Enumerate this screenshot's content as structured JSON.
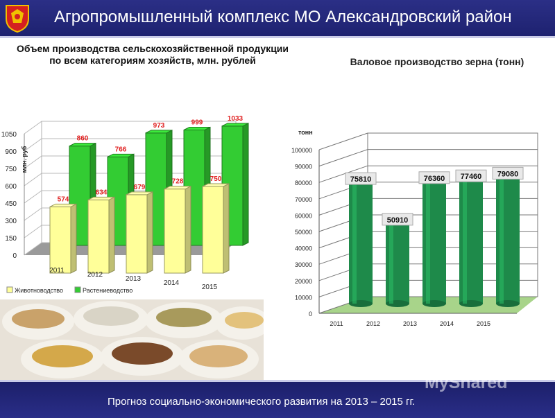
{
  "header": {
    "title": "Агропромышленный комплекс МО Александровский район"
  },
  "footer": {
    "text": "Прогноз социально-экономического развития на 2013 – 2015 гг."
  },
  "watermark": "MyShared",
  "chart_data": [
    {
      "type": "bar",
      "title": "Объем производства сельскохозяйственной продукции по всем категориям хозяйств, млн. рублей",
      "ylabel": "млн. руб",
      "categories": [
        "2011",
        "2012",
        "2013",
        "2014",
        "2015"
      ],
      "series": [
        {
          "name": "Животноводство",
          "values": [
            574,
            634,
            679,
            728,
            750
          ],
          "value_labels": [
            "574",
            "634",
            "679",
            "728",
            "750"
          ],
          "color": "#ffff99"
        },
        {
          "name": "Растениеводство",
          "values": [
            860,
            766,
            973,
            999,
            1033
          ],
          "value_labels": [
            "860",
            "766",
            "973",
            "999",
            "1033"
          ],
          "color": "#33cc33"
        }
      ],
      "yticks": [
        "0",
        "150",
        "300",
        "450",
        "600",
        "750",
        "900",
        "1050"
      ],
      "ylim": [
        0,
        1050
      ],
      "legend": "bottom",
      "grid": true
    },
    {
      "type": "bar",
      "title": "Валовое производство зерна (тонн)",
      "ylabel": "тонн",
      "categories": [
        "2011",
        "2012",
        "2013",
        "2014",
        "2015"
      ],
      "values": [
        75810,
        50910,
        76360,
        77460,
        79080
      ],
      "value_labels": [
        "75810",
        "50910",
        "76360",
        "77460",
        "79080"
      ],
      "yticks": [
        "0",
        "10000",
        "20000",
        "30000",
        "40000",
        "50000",
        "60000",
        "70000",
        "80000",
        "90000",
        "100000"
      ],
      "ylim": [
        0,
        100000
      ],
      "color": "#1e8a4a",
      "grid": true
    }
  ]
}
